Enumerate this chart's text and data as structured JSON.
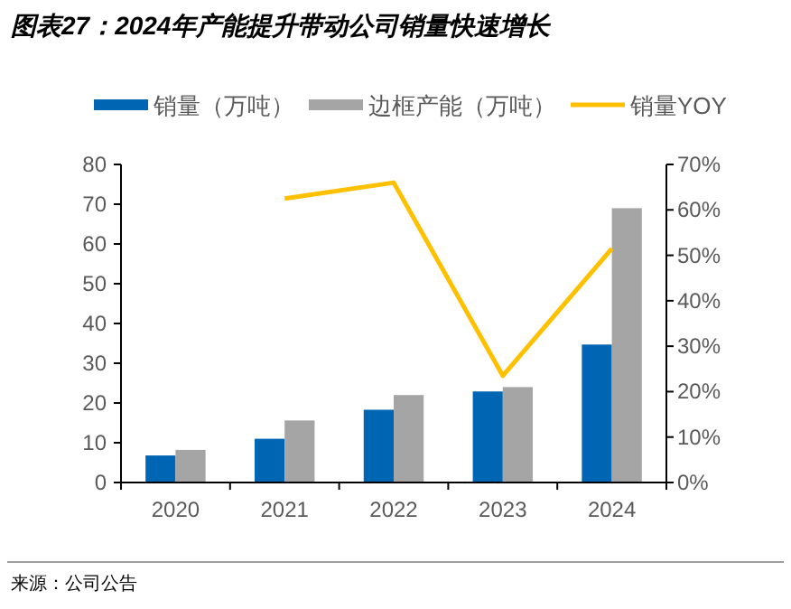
{
  "chart_data": {
    "type": "bar",
    "title": "图表27：2024年产能提升带动公司销量快速增长",
    "categories": [
      "2020",
      "2021",
      "2022",
      "2023",
      "2024"
    ],
    "series": [
      {
        "name": "销量（万吨）",
        "color": "#0066b3",
        "values": [
          6.8,
          11,
          18.3,
          22.9,
          34.7
        ]
      },
      {
        "name": "边框产能（万吨）",
        "color": "#a5a5a5",
        "values": [
          8.2,
          15.6,
          22,
          24,
          69
        ]
      },
      {
        "name": "销量YOY",
        "type": "line",
        "axis": "y2",
        "color": "#ffc000",
        "values": [
          null,
          62.5,
          66,
          23.5,
          51.5
        ]
      }
    ],
    "ylim": [
      0,
      80
    ],
    "yticks": [
      0,
      10,
      20,
      30,
      40,
      50,
      60,
      70,
      80
    ],
    "y2lim": [
      0,
      70
    ],
    "y2ticks": [
      {
        "value": 0,
        "label": "0%"
      },
      {
        "value": 10,
        "label": "10%"
      },
      {
        "value": 20,
        "label": "20%"
      },
      {
        "value": 30,
        "label": "30%"
      },
      {
        "value": 40,
        "label": "40%"
      },
      {
        "value": 50,
        "label": "50%"
      },
      {
        "value": 60,
        "label": "60%"
      },
      {
        "value": 70,
        "label": "70%"
      }
    ],
    "grid": false,
    "legend": "top",
    "annotations": [
      "来源：公司公告"
    ]
  }
}
